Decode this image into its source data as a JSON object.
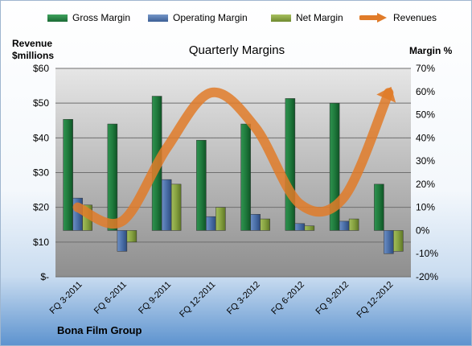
{
  "chart_data": {
    "type": "bar",
    "title": "Quarterly Margins",
    "y_left_title_line1": "Revenue",
    "y_left_title_line2": "$millions",
    "y_right_title": "Margin %",
    "footer": "Bona Film Group",
    "categories": [
      "FQ 3-2011",
      "FQ 6-2011",
      "FQ 9-2011",
      "FQ 12-2011",
      "FQ 3-2012",
      "FQ 6-2012",
      "FQ 9-2012",
      "FQ 12-2012"
    ],
    "left_axis": {
      "ylim": [
        0,
        60
      ],
      "ticks": [
        0,
        10,
        20,
        30,
        40,
        50,
        60
      ],
      "tick_labels": [
        "$-",
        "$10",
        "$20",
        "$30",
        "$40",
        "$50",
        "$60"
      ]
    },
    "right_axis": {
      "ylim": [
        -20,
        70
      ],
      "ticks": [
        -20,
        -10,
        0,
        10,
        20,
        30,
        40,
        50,
        60,
        70
      ],
      "tick_labels": [
        "-20%",
        "-10%",
        "0%",
        "10%",
        "20%",
        "30%",
        "40%",
        "50%",
        "60%",
        "70%"
      ]
    },
    "series": [
      {
        "name": "Gross Margin",
        "axis": "right",
        "type": "bar",
        "color": "#1e7a3c",
        "values": [
          48,
          46,
          58,
          39,
          46,
          57,
          55,
          20
        ]
      },
      {
        "name": "Operating Margin",
        "axis": "right",
        "type": "bar",
        "color": "#4a6fa8",
        "values": [
          14,
          -9,
          22,
          6,
          7,
          3,
          4,
          -10
        ]
      },
      {
        "name": "Net Margin",
        "axis": "right",
        "type": "bar",
        "color": "#7f9a3d",
        "values": [
          11,
          -5,
          20,
          10,
          5,
          2,
          5,
          -9
        ]
      },
      {
        "name": "Revenues",
        "axis": "left",
        "type": "line",
        "color": "#e07b29",
        "values": [
          20,
          16,
          37,
          53,
          43,
          21,
          23,
          53
        ]
      }
    ],
    "grid": true,
    "legend_position": "top"
  }
}
